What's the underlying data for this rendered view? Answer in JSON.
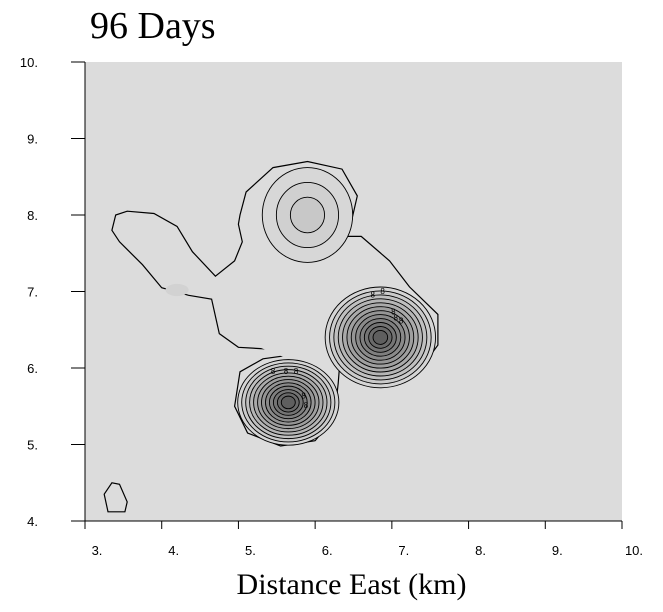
{
  "chart_data": {
    "type": "contour",
    "title": "96 Days",
    "xlabel": "Distance East (km)",
    "ylabel": "",
    "xlim": [
      3,
      10
    ],
    "ylim": [
      4,
      10
    ],
    "xticks": [
      "3.",
      "4.",
      "5.",
      "6.",
      "7.",
      "8.",
      "9.",
      "10."
    ],
    "yticks": [
      "4.",
      "5.",
      "6.",
      "7.",
      "8.",
      "9.",
      "10."
    ],
    "grid": false,
    "background_color": "#dcdcdc",
    "line_color": "#000000",
    "contour_labels": [
      "8",
      "8",
      "8",
      "8",
      "8",
      "8",
      "8",
      "8",
      "8",
      "8"
    ],
    "features": [
      {
        "name": "north-peak",
        "center": [
          5.9,
          8.0
        ],
        "levels": 3
      },
      {
        "name": "east-peak",
        "center": [
          6.85,
          6.4
        ],
        "levels": 12
      },
      {
        "name": "south-peak",
        "center": [
          5.65,
          5.55
        ],
        "levels": 12
      },
      {
        "name": "west-plume",
        "center": [
          4.2,
          7.0
        ],
        "levels": 1
      },
      {
        "name": "southwest-blob",
        "center": [
          3.45,
          4.3
        ],
        "levels": 1
      }
    ]
  }
}
